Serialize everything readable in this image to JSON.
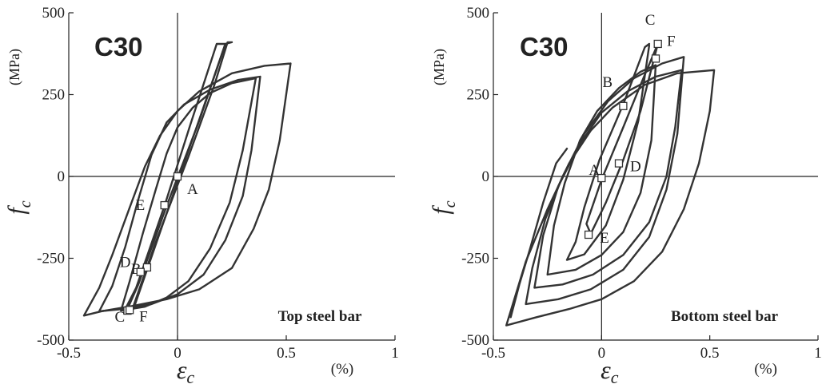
{
  "chart_data": [
    {
      "type": "line",
      "panel_label": "C30",
      "caption": "Top steel bar",
      "ylabel_symbol": "f",
      "ylabel_sub": "c",
      "ylabel_unit": "(MPa)",
      "xlabel_symbol": "ε",
      "xlabel_sub": "c",
      "xlabel_unit": "(%)",
      "xlim": [
        -0.5,
        1
      ],
      "ylim": [
        -500,
        500
      ],
      "xticks": [
        -0.5,
        0,
        0.5,
        1
      ],
      "xtick_labels": [
        "-0.5",
        "0",
        "0.5",
        "1"
      ],
      "yticks": [
        -500,
        -250,
        0,
        250,
        500
      ],
      "ytick_labels": [
        "-500",
        "-250",
        "0",
        "250",
        "500"
      ],
      "grid": false,
      "axes_through_origin": true,
      "series": [
        {
          "values": [
            [
              0.52,
              345
            ],
            [
              0.4,
              338
            ],
            [
              0.25,
              315
            ],
            [
              0.1,
              260
            ],
            [
              0.0,
              200
            ],
            [
              -0.08,
              125
            ],
            [
              -0.15,
              30
            ],
            [
              -0.22,
              -95
            ],
            [
              -0.3,
              -240
            ],
            [
              -0.36,
              -340
            ],
            [
              -0.43,
              -425
            ],
            [
              -0.35,
              -412
            ],
            [
              -0.2,
              -395
            ],
            [
              -0.05,
              -375
            ],
            [
              0.1,
              -345
            ],
            [
              0.25,
              -280
            ],
            [
              0.35,
              -160
            ],
            [
              0.42,
              -40
            ],
            [
              0.47,
              110
            ],
            [
              0.52,
              345
            ]
          ]
        },
        {
          "values": [
            [
              0.38,
              305
            ],
            [
              0.28,
              295
            ],
            [
              0.15,
              265
            ],
            [
              0.03,
              220
            ],
            [
              -0.05,
              165
            ],
            [
              -0.12,
              65
            ],
            [
              -0.18,
              -70
            ],
            [
              -0.24,
              -215
            ],
            [
              -0.3,
              -335
            ],
            [
              -0.36,
              -412
            ],
            [
              -0.25,
              -405
            ],
            [
              -0.12,
              -390
            ],
            [
              0.0,
              -360
            ],
            [
              0.12,
              -300
            ],
            [
              0.22,
              -195
            ],
            [
              0.3,
              -60
            ],
            [
              0.34,
              80
            ],
            [
              0.38,
              305
            ]
          ]
        },
        {
          "values": [
            [
              0.36,
              300
            ],
            [
              0.25,
              285
            ],
            [
              0.15,
              255
            ],
            [
              0.07,
              210
            ],
            [
              0.0,
              150
            ],
            [
              -0.05,
              70
            ],
            [
              -0.1,
              -40
            ],
            [
              -0.16,
              -175
            ],
            [
              -0.22,
              -320
            ],
            [
              -0.26,
              -410
            ],
            [
              -0.15,
              -398
            ],
            [
              -0.05,
              -370
            ],
            [
              0.05,
              -320
            ],
            [
              0.15,
              -220
            ],
            [
              0.24,
              -80
            ],
            [
              0.3,
              80
            ],
            [
              0.36,
              300
            ]
          ]
        },
        {
          "values": [
            [
              0.25,
              410
            ],
            [
              0.22,
              405
            ],
            [
              0.1,
              170
            ],
            [
              -0.05,
              -90
            ],
            [
              -0.18,
              -330
            ],
            [
              -0.23,
              -405
            ],
            [
              -0.21,
              -410
            ],
            [
              -0.1,
              -200
            ],
            [
              0.05,
              60
            ],
            [
              0.17,
              280
            ],
            [
              0.23,
              410
            ],
            [
              0.25,
              410
            ]
          ]
        },
        {
          "values": [
            [
              0.22,
              405
            ],
            [
              0.18,
              405
            ],
            [
              0.06,
              160
            ],
            [
              -0.06,
              -90
            ],
            [
              -0.19,
              -340
            ],
            [
              -0.24,
              -405
            ],
            [
              -0.2,
              -400
            ],
            [
              -0.08,
              -170
            ],
            [
              0.03,
              40
            ],
            [
              0.15,
              270
            ],
            [
              0.22,
              405
            ]
          ]
        }
      ],
      "markers": [
        {
          "label": "A",
          "x": 0.0,
          "y": 0
        },
        {
          "label": "B",
          "x": -0.14,
          "y": -278
        },
        {
          "label": "C",
          "x": -0.23,
          "y": -410
        },
        {
          "label": "D",
          "x": -0.17,
          "y": -292
        },
        {
          "label": "E",
          "x": -0.06,
          "y": -88
        },
        {
          "label": "F",
          "x": -0.22,
          "y": -408
        }
      ]
    },
    {
      "type": "line",
      "panel_label": "C30",
      "caption": "Bottom steel bar",
      "ylabel_symbol": "f",
      "ylabel_sub": "c",
      "ylabel_unit": "(MPa)",
      "xlabel_symbol": "ε",
      "xlabel_sub": "c",
      "xlabel_unit": "(%)",
      "xlim": [
        -0.5,
        1
      ],
      "ylim": [
        -500,
        500
      ],
      "xticks": [
        -0.5,
        0,
        0.5,
        1
      ],
      "xtick_labels": [
        "-0.5",
        "0",
        "0.5",
        "1"
      ],
      "yticks": [
        -500,
        -250,
        0,
        250,
        500
      ],
      "ytick_labels": [
        "-500",
        "-250",
        "0",
        "250",
        "500"
      ],
      "grid": false,
      "axes_through_origin": true,
      "series": [
        {
          "values": [
            [
              0.52,
              325
            ],
            [
              0.35,
              315
            ],
            [
              0.2,
              280
            ],
            [
              0.05,
              210
            ],
            [
              -0.05,
              140
            ],
            [
              -0.15,
              40
            ],
            [
              -0.25,
              -100
            ],
            [
              -0.35,
              -260
            ],
            [
              -0.44,
              -455
            ],
            [
              -0.3,
              -430
            ],
            [
              -0.15,
              -405
            ],
            [
              0.0,
              -375
            ],
            [
              0.15,
              -320
            ],
            [
              0.28,
              -230
            ],
            [
              0.38,
              -100
            ],
            [
              0.45,
              40
            ],
            [
              0.5,
              200
            ],
            [
              0.52,
              325
            ]
          ]
        },
        {
          "values": [
            [
              0.38,
              365
            ],
            [
              0.28,
              345
            ],
            [
              0.15,
              300
            ],
            [
              0.03,
              230
            ],
            [
              -0.08,
              130
            ],
            [
              -0.18,
              0
            ],
            [
              -0.26,
              -130
            ],
            [
              -0.32,
              -280
            ],
            [
              -0.35,
              -390
            ],
            [
              -0.2,
              -375
            ],
            [
              -0.05,
              -345
            ],
            [
              0.1,
              -285
            ],
            [
              0.22,
              -185
            ],
            [
              0.3,
              -40
            ],
            [
              0.35,
              130
            ],
            [
              0.38,
              365
            ]
          ]
        },
        {
          "values": [
            [
              0.37,
              325
            ],
            [
              0.25,
              305
            ],
            [
              0.12,
              260
            ],
            [
              0.0,
              195
            ],
            [
              -0.1,
              100
            ],
            [
              -0.2,
              -30
            ],
            [
              -0.27,
              -180
            ],
            [
              -0.31,
              -340
            ],
            [
              -0.18,
              -330
            ],
            [
              -0.04,
              -300
            ],
            [
              0.1,
              -240
            ],
            [
              0.22,
              -140
            ],
            [
              0.3,
              0
            ],
            [
              0.34,
              150
            ],
            [
              0.37,
              325
            ]
          ]
        },
        {
          "values": [
            [
              0.25,
              340
            ],
            [
              0.18,
              320
            ],
            [
              0.08,
              270
            ],
            [
              -0.02,
              200
            ],
            [
              -0.1,
              110
            ],
            [
              -0.17,
              -20
            ],
            [
              -0.22,
              -150
            ],
            [
              -0.25,
              -300
            ],
            [
              -0.12,
              -285
            ],
            [
              0.0,
              -240
            ],
            [
              0.1,
              -170
            ],
            [
              0.18,
              -50
            ],
            [
              0.23,
              110
            ],
            [
              0.25,
              340
            ]
          ]
        },
        {
          "values": [
            [
              0.22,
              405
            ],
            [
              0.2,
              395
            ],
            [
              0.1,
              220
            ],
            [
              -0.01,
              50
            ],
            [
              -0.08,
              -95
            ],
            [
              -0.12,
              -200
            ],
            [
              -0.16,
              -255
            ],
            [
              -0.08,
              -238
            ],
            [
              0.02,
              -150
            ],
            [
              0.1,
              -10
            ],
            [
              0.17,
              170
            ],
            [
              0.22,
              400
            ]
          ]
        },
        {
          "values": [
            [
              0.26,
              405
            ],
            [
              0.18,
              280
            ],
            [
              0.1,
              150
            ],
            [
              0.0,
              -10
            ],
            [
              -0.07,
              -145
            ],
            [
              -0.05,
              -175
            ],
            [
              0.02,
              -80
            ],
            [
              0.1,
              50
            ],
            [
              0.18,
              200
            ],
            [
              0.26,
              405
            ]
          ]
        },
        {
          "values": [
            [
              -0.16,
              85
            ],
            [
              -0.21,
              40
            ],
            [
              -0.27,
              -80
            ],
            [
              -0.33,
              -220
            ],
            [
              -0.38,
              -330
            ],
            [
              -0.42,
              -430
            ]
          ]
        }
      ],
      "markers": [
        {
          "label": "A",
          "x": 0.0,
          "y": -5
        },
        {
          "label": "B",
          "x": 0.1,
          "y": 215
        },
        {
          "label": "C",
          "x": 0.26,
          "y": 405
        },
        {
          "label": "D",
          "x": 0.08,
          "y": 40
        },
        {
          "label": "E",
          "x": -0.06,
          "y": -178
        },
        {
          "label": "F",
          "x": 0.25,
          "y": 360
        }
      ]
    }
  ]
}
